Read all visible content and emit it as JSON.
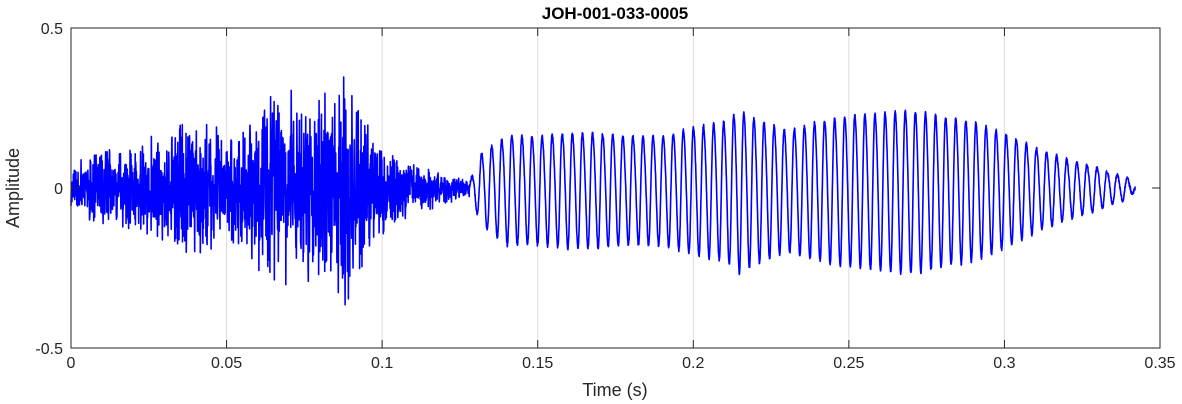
{
  "chart_data": {
    "type": "line",
    "title": "JOH-001-033-0005",
    "xlabel": "Time (s)",
    "ylabel": "Amplitude",
    "xlim": [
      0,
      0.35
    ],
    "ylim": [
      -0.5,
      0.5
    ],
    "x_ticks": [
      {
        "value": 0,
        "label": "0"
      },
      {
        "value": 0.05,
        "label": "0.05"
      },
      {
        "value": 0.1,
        "label": "0.1"
      },
      {
        "value": 0.15,
        "label": "0.15"
      },
      {
        "value": 0.2,
        "label": "0.2"
      },
      {
        "value": 0.25,
        "label": "0.25"
      },
      {
        "value": 0.3,
        "label": "0.3"
      },
      {
        "value": 0.35,
        "label": "0.35"
      }
    ],
    "y_ticks": [
      {
        "value": -0.5,
        "label": "-0.5"
      },
      {
        "value": 0,
        "label": "0"
      },
      {
        "value": 0.5,
        "label": "0.5"
      }
    ],
    "grid": "vertical",
    "line_color": "#0000ff",
    "segments": [
      {
        "kind": "noise",
        "t_start": 0,
        "t_end": 0.128,
        "envelope": [
          [
            0,
            0.07
          ],
          [
            0.01,
            0.13
          ],
          [
            0.02,
            0.13
          ],
          [
            0.03,
            0.19
          ],
          [
            0.04,
            0.22
          ],
          [
            0.05,
            0.19
          ],
          [
            0.055,
            0.2
          ],
          [
            0.06,
            0.27
          ],
          [
            0.07,
            0.32
          ],
          [
            0.08,
            0.3
          ],
          [
            0.085,
            0.35
          ],
          [
            0.088,
            0.41
          ],
          [
            0.09,
            0.3
          ],
          [
            0.1,
            0.16
          ],
          [
            0.105,
            0.12
          ],
          [
            0.11,
            0.09
          ],
          [
            0.12,
            0.05
          ],
          [
            0.128,
            0.03
          ]
        ]
      },
      {
        "kind": "voiced",
        "t_start": 0.128,
        "t_end": 0.342,
        "cycles": 66,
        "envelope": [
          [
            0.128,
            0.02
          ],
          [
            0.132,
            0.12
          ],
          [
            0.14,
            0.18
          ],
          [
            0.15,
            0.18
          ],
          [
            0.16,
            0.19
          ],
          [
            0.17,
            0.19
          ],
          [
            0.18,
            0.18
          ],
          [
            0.19,
            0.18
          ],
          [
            0.2,
            0.21
          ],
          [
            0.21,
            0.23
          ],
          [
            0.215,
            0.27
          ],
          [
            0.22,
            0.24
          ],
          [
            0.23,
            0.2
          ],
          [
            0.24,
            0.23
          ],
          [
            0.25,
            0.25
          ],
          [
            0.26,
            0.26
          ],
          [
            0.27,
            0.27
          ],
          [
            0.28,
            0.25
          ],
          [
            0.29,
            0.23
          ],
          [
            0.3,
            0.19
          ],
          [
            0.31,
            0.14
          ],
          [
            0.32,
            0.1
          ],
          [
            0.33,
            0.07
          ],
          [
            0.34,
            0.03
          ],
          [
            0.342,
            0.01
          ]
        ]
      }
    ]
  }
}
